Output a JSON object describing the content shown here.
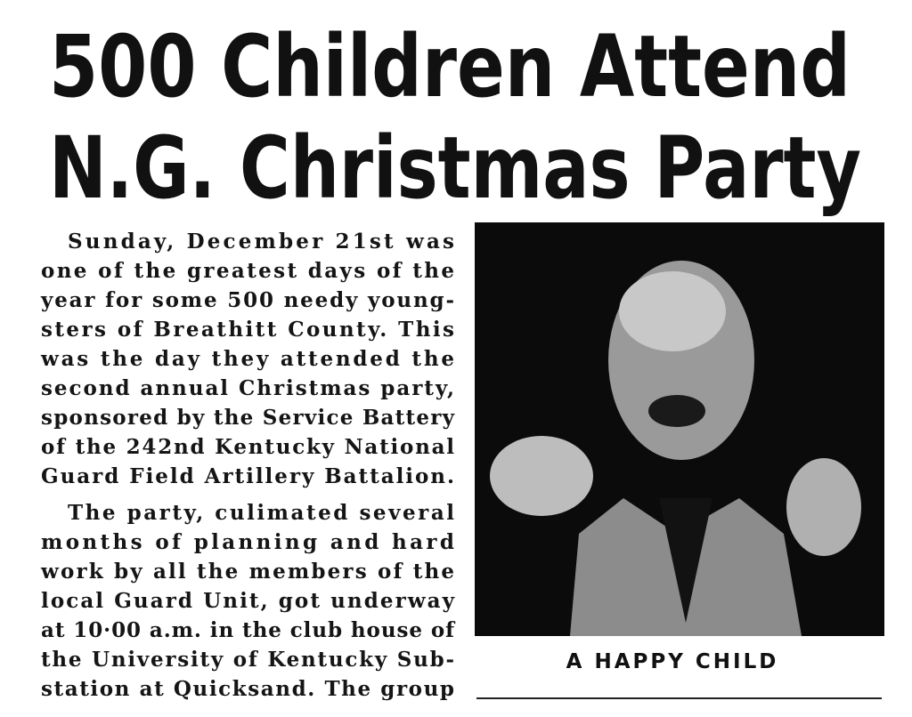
{
  "headline": {
    "lines": [
      "500 Children Attend",
      "N.G. Christmas Party"
    ]
  },
  "body": {
    "paragraphs": [
      {
        "lines": [
          "Sunday,  December 21st was",
          "one of the greatest days of the",
          "year for some 500 needy young-",
          "sters of Breathitt County. This",
          "was the day they attended the",
          "second annual Christmas party,",
          "sponsored by the Service Battery",
          "of the 242nd Kentucky National",
          "Guard Field Artillery Battalion."
        ]
      },
      {
        "lines": [
          "The party, culimated several",
          "months of planning and hard",
          "work by all the members of the",
          "local Guard Unit, got underway",
          "at 10·00 a.m. in the club house of",
          "the University of Kentucky Sub-",
          "station at Quicksand. The group"
        ]
      }
    ]
  },
  "photo": {
    "caption": "A HAPPY CHILD"
  }
}
